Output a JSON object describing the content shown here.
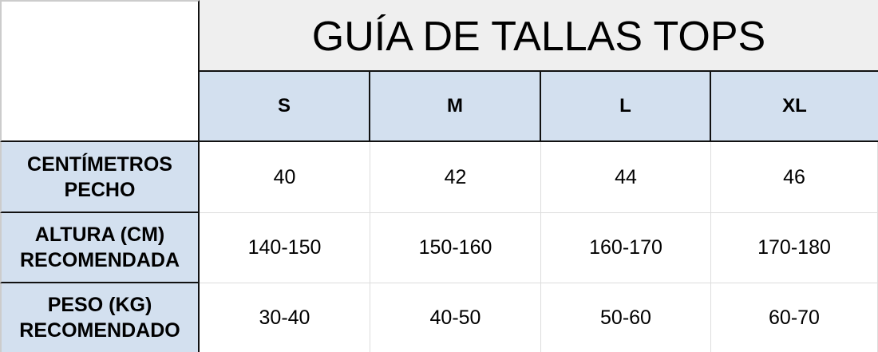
{
  "title": "GUÍA DE TALLAS TOPS",
  "sizes": [
    "S",
    "M",
    "L",
    "XL"
  ],
  "rows": [
    {
      "label_line1": "CENTÍMETROS",
      "label_line2": "PECHO",
      "values": [
        "40",
        "42",
        "44",
        "46"
      ]
    },
    {
      "label_line1": "ALTURA (CM)",
      "label_line2": "RECOMENDADA",
      "values": [
        "140-150",
        "150-160",
        "160-170",
        "170-180"
      ]
    },
    {
      "label_line1": "PESO (KG)",
      "label_line2": "RECOMENDADO",
      "values": [
        "30-40",
        "40-50",
        "50-60",
        "60-70"
      ]
    }
  ],
  "colors": {
    "header_blue": "#d3e0ef",
    "title_gray": "#efefef"
  }
}
